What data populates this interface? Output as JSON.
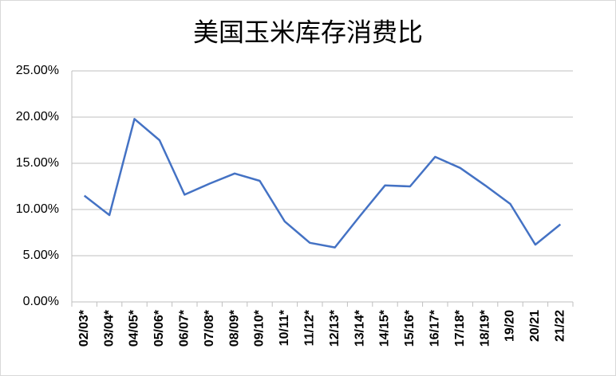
{
  "chart_data": {
    "type": "line",
    "title": "美国玉米库存消费比",
    "categories": [
      "02/03*",
      "03/04*",
      "04/05*",
      "05/06*",
      "06/07*",
      "07/08*",
      "08/09*",
      "09/10*",
      "10/11*",
      "11/12*",
      "12/13*",
      "13/14*",
      "14/15*",
      "15/16*",
      "16/17*",
      "17/18*",
      "18/19*",
      "19/20",
      "20/21",
      "21/22"
    ],
    "values": [
      11.5,
      9.4,
      19.8,
      17.5,
      11.6,
      12.8,
      13.9,
      13.1,
      8.7,
      6.4,
      5.9,
      9.3,
      12.6,
      12.5,
      15.7,
      14.5,
      12.6,
      10.6,
      6.2,
      8.4
    ],
    "color": "#4472c4",
    "ylim": [
      0,
      25
    ],
    "yticks": [
      {
        "value": 0,
        "label": "0.00%"
      },
      {
        "value": 5,
        "label": "5.00%"
      },
      {
        "value": 10,
        "label": "10.00%"
      },
      {
        "value": 15,
        "label": "15.00%"
      },
      {
        "value": 20,
        "label": "20.00%"
      },
      {
        "value": 25,
        "label": "25.00%"
      }
    ],
    "grid": true
  }
}
